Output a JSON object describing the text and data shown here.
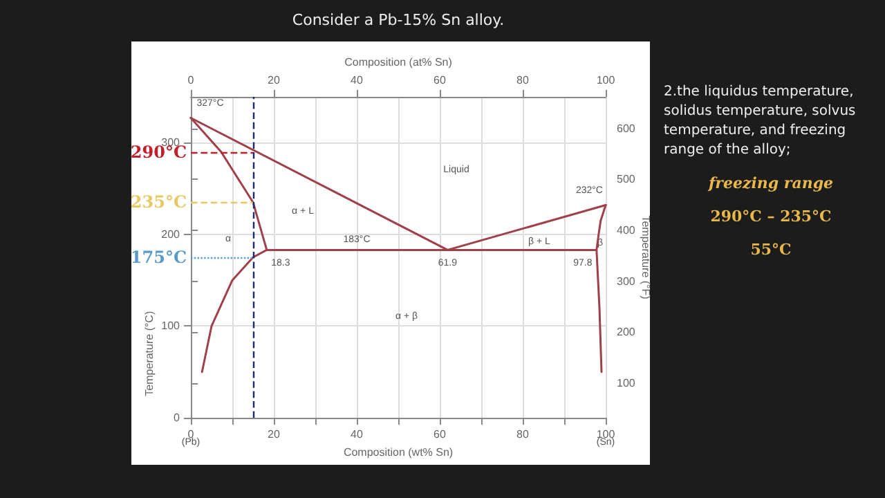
{
  "chart_data": {
    "type": "line",
    "title": "Consider a Pb-15% Sn alloy.",
    "xlabel": "Composition (wt% Sn)",
    "x2label": "Composition (at% Sn)",
    "ylabel": "Temperature (°C)",
    "y2label": "Temperature (°F)",
    "xlim": [
      0,
      100
    ],
    "xticks": [
      0,
      {
        "value": 10,
        "label": null
      },
      20,
      {
        "value": 30,
        "label": null
      },
      40,
      {
        "value": 50,
        "label": null
      },
      60,
      {
        "value": 70,
        "label": null
      },
      80,
      {
        "value": 90,
        "label": null
      },
      100
    ],
    "x2lim": [
      0,
      100
    ],
    "x2ticks": [
      0,
      20,
      40,
      60,
      80,
      100
    ],
    "ylim": [
      0,
      350
    ],
    "yticks": [
      0,
      100,
      200,
      300
    ],
    "y2lim": [
      32,
      662
    ],
    "y2ticks": [
      100,
      200,
      300,
      400,
      500,
      600
    ],
    "grid": true,
    "marker": "none",
    "line_style": "solid",
    "series": [
      {
        "color": "#a0404c",
        "x": [
          0,
          61.9,
          100
        ],
        "values": [
          327,
          183,
          232
        ]
      },
      {
        "color": "#a0404c",
        "x": [
          0,
          7.3,
          15,
          18.3
        ],
        "values": [
          327,
          290,
          235,
          183
        ]
      },
      {
        "color": "#a0404c",
        "x": [
          18.3,
          15,
          10,
          5,
          2.7
        ],
        "values": [
          183,
          175,
          150,
          100,
          50
        ]
      },
      {
        "color": "#a0404c",
        "x": [
          18.3,
          97.8
        ],
        "values": [
          183,
          183
        ]
      },
      {
        "color": "#a0404c",
        "x": [
          100,
          98.8,
          98.3,
          97.8,
          98.5,
          99
        ],
        "values": [
          232,
          215,
          200,
          183,
          120,
          50
        ]
      }
    ],
    "ref_lines": [
      {
        "axis": "y",
        "value": 290,
        "label": "290°C",
        "color": "#c0202a",
        "line_style": "dashed"
      },
      {
        "axis": "y",
        "value": 235,
        "label": "235°C",
        "color": "#e8c860",
        "line_style": "dashed"
      },
      {
        "axis": "y",
        "value": 175,
        "label": "175°C",
        "color": "#5a9ac8",
        "line_style": "dotted"
      },
      {
        "axis": "x",
        "value": 15,
        "label": null,
        "color": "#1a2a6a",
        "line_style": "dashed"
      }
    ],
    "annotations": [
      {
        "text": "327°C",
        "x": 0,
        "y": 327
      },
      {
        "text": "232°C",
        "x": 100,
        "y": 232
      },
      {
        "text": "183°C",
        "x": 40,
        "y": 183
      },
      {
        "text": "18.3",
        "x": 18.3,
        "y": 183
      },
      {
        "text": "61.9",
        "x": 61.9,
        "y": 183
      },
      {
        "text": "97.8",
        "x": 97.8,
        "y": 183
      },
      "Liquid",
      "α + L",
      "β + L",
      "α",
      "β",
      "α + β",
      "(Pb)",
      "(Sn)",
      "2.the liquidus temperature, solidus temperature, solvus temperature, and freezing range of the alloy;",
      "freezing range",
      "290°C – 235°C",
      "55°C"
    ]
  }
}
